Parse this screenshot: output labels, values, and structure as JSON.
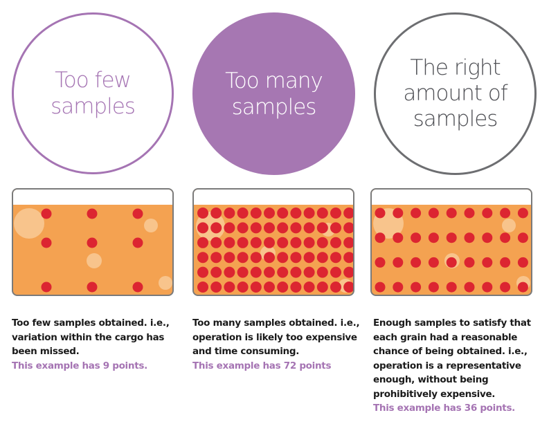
{
  "colors": {
    "purple": "#a677b2",
    "grey": "#6d6e71",
    "liquid": "#f4a251",
    "bubble": "#f8c48c",
    "sample_dot": "#dc2531"
  },
  "panels": [
    {
      "title_line1": "Too few",
      "title_line2": "samples",
      "caption": "Too few samples obtained. i.e., variation within the cargo has been missed.",
      "highlight": "This example has 9 points.",
      "points": 9,
      "grid": {
        "cols": 3,
        "rows": 3
      }
    },
    {
      "title_line1": "Too many",
      "title_line2": "samples",
      "caption": "Too many samples obtained. i.e., operation is likely too expensive and time consuming.",
      "highlight": "This example has 72 points",
      "points": 72,
      "grid": {
        "cols": 12,
        "rows": 6
      }
    },
    {
      "title_line1": "The right",
      "title_line2": "amount of",
      "title_line3": "samples",
      "caption": "Enough samples to satisfy that each grain had a reasonable chance of being obtained. i.e., operation is a representative enough, without being prohibitively expensive.",
      "highlight": "This example has 36 points.",
      "points": 36,
      "grid": {
        "cols": 9,
        "rows": 4
      }
    }
  ]
}
